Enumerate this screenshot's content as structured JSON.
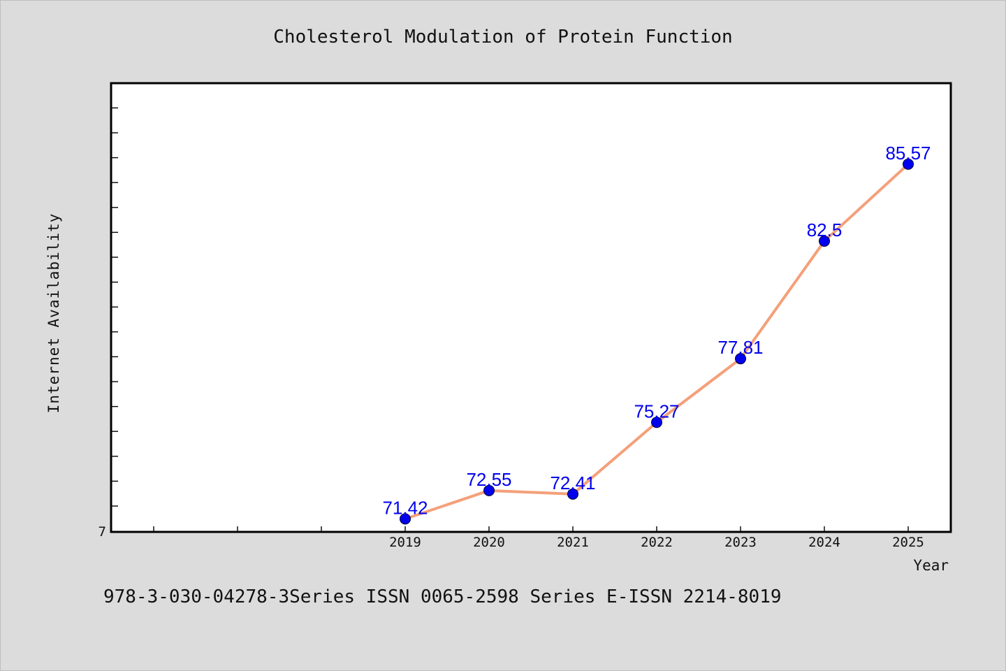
{
  "chart_data": {
    "type": "line",
    "title": "Cholesterol Modulation of Protein Function",
    "xlabel": "Year",
    "ylabel": "Internet Availability",
    "x": [
      "2019",
      "2020",
      "2021",
      "2022",
      "2023",
      "2024",
      "2025"
    ],
    "series": [
      {
        "values": [
          71.42,
          72.55,
          72.41,
          75.27,
          77.81,
          82.5,
          85.57
        ],
        "labels": [
          "71.42",
          "72.55",
          "72.41",
          "75.27",
          "77.81",
          "82.5",
          "85.57"
        ]
      }
    ],
    "ylim": [
      70.9,
      88.8
    ],
    "y_tick_labels": [
      "7"
    ],
    "grid": false,
    "line_color": "#f4a07a",
    "marker_color": "#0000ee",
    "label_color": "#0000ee"
  },
  "footer_text": "978-3-030-04278-3Series ISSN 0065-2598 Series E-ISSN 2214-8019"
}
